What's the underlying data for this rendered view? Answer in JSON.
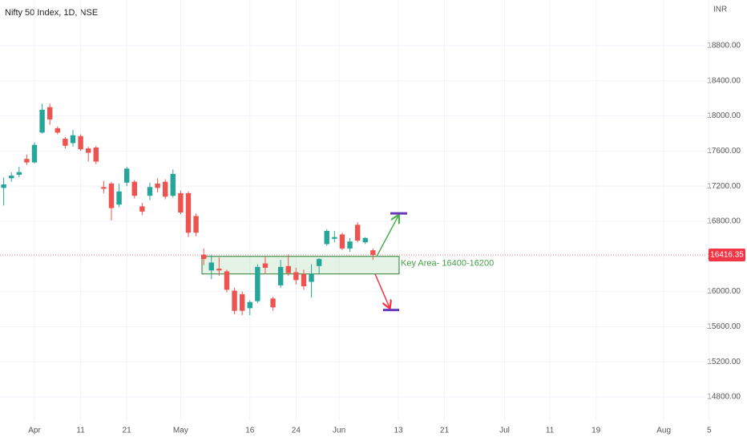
{
  "chart_data": {
    "type": "candlestick",
    "title": "Nifty 50 Index, 1D, NSE",
    "currency": "INR",
    "x": [
      -4,
      -3,
      -2,
      -1,
      0,
      1,
      2,
      3,
      4,
      5,
      6,
      7,
      8,
      9,
      10,
      11,
      12,
      13,
      14,
      15,
      16,
      17,
      18,
      19,
      20,
      21,
      22,
      23,
      24,
      25,
      26,
      27,
      28,
      29,
      30,
      31,
      32,
      33,
      34,
      35,
      36,
      37,
      38,
      39,
      40,
      41,
      42,
      43,
      44
    ],
    "open": [
      17180,
      17290,
      17330,
      17510,
      17470,
      17810,
      18100,
      17860,
      17740,
      17690,
      17770,
      17630,
      17640,
      17190,
      17230,
      16990,
      17240,
      17250,
      16970,
      17090,
      17230,
      17250,
      17090,
      17120,
      17120,
      16860,
      16420,
      16240,
      16260,
      16230,
      16010,
      15970,
      15810,
      15890,
      16320,
      15920,
      16070,
      16290,
      16220,
      16200,
      16110,
      16290,
      16540,
      16600,
      16650,
      16490,
      16760,
      16560,
      16470
    ],
    "high": [
      17300,
      17360,
      17420,
      17560,
      17700,
      18140,
      18140,
      17880,
      17760,
      17840,
      17790,
      17650,
      17660,
      17260,
      17250,
      17230,
      17420,
      17270,
      17010,
      17240,
      17290,
      17280,
      17390,
      17150,
      17140,
      16890,
      16490,
      16420,
      16390,
      16250,
      16040,
      16000,
      15900,
      16310,
      16400,
      15940,
      16360,
      16420,
      16270,
      16250,
      16310,
      16380,
      16710,
      16690,
      16670,
      16610,
      16790,
      16620,
      16490
    ],
    "low": [
      16980,
      17250,
      17300,
      17440,
      17460,
      17800,
      17900,
      17790,
      17630,
      17650,
      17600,
      17480,
      17450,
      17120,
      16810,
      16960,
      17200,
      17060,
      16870,
      17040,
      17130,
      17050,
      17070,
      16880,
      16620,
      16630,
      16300,
      16140,
      16180,
      15990,
      15740,
      15730,
      15730,
      15870,
      16200,
      15780,
      16040,
      16180,
      16080,
      16020,
      15930,
      16200,
      16520,
      16560,
      16470,
      16450,
      16560,
      16540,
      16360
    ],
    "close": [
      17220,
      17320,
      17360,
      17470,
      17670,
      18070,
      17960,
      17810,
      17660,
      17780,
      17620,
      17580,
      17480,
      17170,
      16950,
      17140,
      17400,
      17090,
      16910,
      17190,
      17180,
      17080,
      17340,
      16900,
      16670,
      16670,
      16370,
      16330,
      16240,
      16020,
      15780,
      15780,
      15880,
      16280,
      16270,
      15820,
      16280,
      16210,
      16130,
      16060,
      16200,
      16370,
      16690,
      16620,
      16490,
      16570,
      16580,
      16610,
      16416.35
    ],
    "up_color": "#26a69a",
    "down_color": "#ef5350",
    "xlim": [
      -4.48,
      87.2
    ],
    "xticks": [
      {
        "value": 0,
        "label": "Apr"
      },
      {
        "value": 6,
        "label": "11"
      },
      {
        "value": 12,
        "label": "21"
      },
      {
        "value": 19,
        "label": "May"
      },
      {
        "value": 28,
        "label": "16"
      },
      {
        "value": 34,
        "label": "24"
      },
      {
        "value": 39.6,
        "label": "Jun"
      },
      {
        "value": 47.3,
        "label": "13"
      },
      {
        "value": 53.3,
        "label": "21"
      },
      {
        "value": 61.1,
        "label": "Jul"
      },
      {
        "value": 67,
        "label": "11"
      },
      {
        "value": 73,
        "label": "19"
      },
      {
        "value": 81.8,
        "label": "Aug"
      },
      {
        "value": 87.7,
        "label": "5"
      }
    ],
    "ylim": [
      14526,
      19320
    ],
    "yticks": [
      {
        "value": 14800,
        "label": "14800.00"
      },
      {
        "value": 15200,
        "label": "15200.00"
      },
      {
        "value": 15600,
        "label": "15600.00"
      },
      {
        "value": 16000,
        "label": "16000.00"
      },
      {
        "value": 16400,
        "label": "16400.00"
      },
      {
        "value": 16800,
        "label": "16800.00"
      },
      {
        "value": 17200,
        "label": "17200.00"
      },
      {
        "value": 17600,
        "label": "17600.00"
      },
      {
        "value": 18000,
        "label": "18000.00"
      },
      {
        "value": 18400,
        "label": "18400.00"
      },
      {
        "value": 18800,
        "label": "18800.00"
      }
    ],
    "grid": true,
    "last_price": {
      "value": 16416.35,
      "label": "16416.35"
    },
    "key_zone": {
      "label": "Key Area- 16400-16200",
      "high": 16400,
      "low": 16200
    },
    "targets": {
      "up": 16890,
      "down": 15790
    }
  }
}
